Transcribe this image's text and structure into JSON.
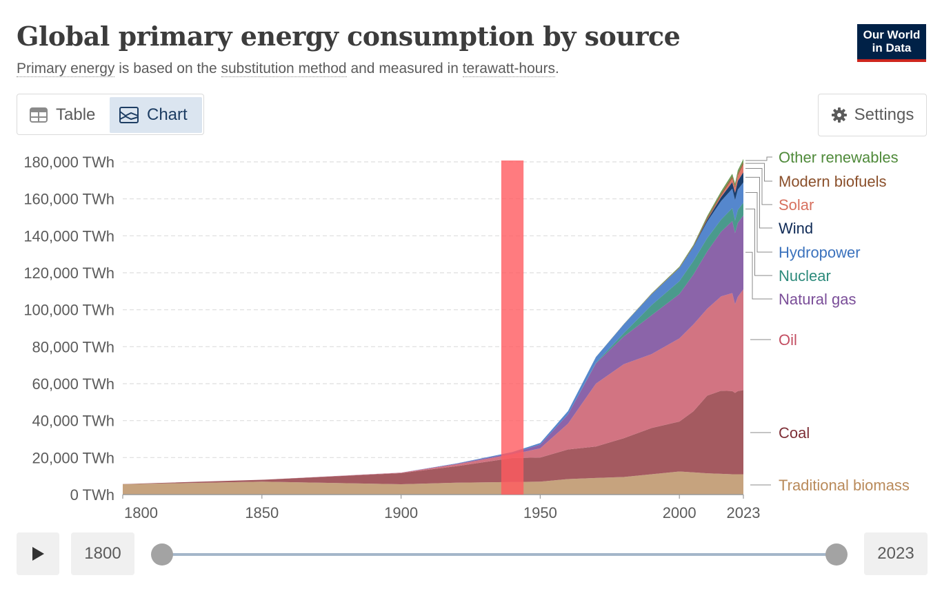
{
  "header": {
    "title": "Global primary energy consumption by source",
    "subtitle_link1": "Primary energy",
    "subtitle_text1": " is based on the ",
    "subtitle_link2": "substitution method",
    "subtitle_text2": " and measured in ",
    "subtitle_link3": "terawatt-hours",
    "subtitle_text3": ".",
    "logo_line1": "Our World",
    "logo_line2": "in Data"
  },
  "tabs": {
    "table": "Table",
    "chart": "Chart",
    "settings": "Settings"
  },
  "timeline": {
    "start_year": "1800",
    "end_year": "2023"
  },
  "colors": {
    "traditional_biomass": "#c6a37e",
    "coal": "#a45a60",
    "oil": "#d27482",
    "natural_gas": "#8b64a9",
    "nuclear": "#4a9a8c",
    "hydropower": "#5587cd",
    "wind": "#1b3f6e",
    "solar": "#e0766a",
    "modern_biofuels": "#a0633e",
    "other_renewables": "#6a9a55",
    "highlight": "#ff5a5f"
  },
  "chart_data": {
    "type": "area",
    "stacked": true,
    "title": "Global primary energy consumption by source",
    "ylabel": "",
    "xlim": [
      1800,
      2023
    ],
    "ylim": [
      0,
      180000
    ],
    "yticks": [
      0,
      20000,
      40000,
      60000,
      80000,
      100000,
      120000,
      140000,
      160000,
      180000
    ],
    "ytick_labels": [
      "0 TWh",
      "20,000 TWh",
      "40,000 TWh",
      "60,000 TWh",
      "80,000 TWh",
      "100,000 TWh",
      "120,000 TWh",
      "140,000 TWh",
      "160,000 TWh",
      "180,000 TWh"
    ],
    "xticks": [
      1800,
      1850,
      1900,
      1950,
      2000,
      2023
    ],
    "xtick_labels": [
      "1800",
      "1850",
      "1900",
      "1950",
      "2000",
      "2023"
    ],
    "grid": "horizontal dashed",
    "legend": "right, end-labels",
    "x": [
      1800,
      1850,
      1900,
      1920,
      1940,
      1950,
      1960,
      1970,
      1980,
      1990,
      2000,
      2005,
      2010,
      2015,
      2019,
      2020,
      2021,
      2023
    ],
    "series": [
      {
        "name": "Traditional biomass",
        "color_key": "traditional_biomass",
        "values": [
          5600,
          7000,
          5600,
          6400,
          6800,
          7000,
          8400,
          9000,
          9500,
          11000,
          12500,
          12000,
          11500,
          11200,
          11000,
          11000,
          11000,
          11000
        ]
      },
      {
        "name": "Coal",
        "color_key": "coal",
        "values": [
          100,
          1000,
          6000,
          9000,
          13000,
          13000,
          16000,
          17000,
          21000,
          25000,
          27000,
          33000,
          42000,
          45000,
          45000,
          44000,
          45000,
          45500
        ]
      },
      {
        "name": "Oil",
        "color_key": "oil",
        "values": [
          0,
          0,
          200,
          1000,
          2000,
          5000,
          14000,
          34000,
          40000,
          40000,
          45000,
          47000,
          47000,
          51000,
          53000,
          48000,
          51000,
          54500
        ]
      },
      {
        "name": "Natural gas",
        "color_key": "natural_gas",
        "values": [
          0,
          0,
          100,
          300,
          700,
          2000,
          5000,
          11000,
          15000,
          21000,
          24000,
          27000,
          31000,
          35000,
          39000,
          38500,
          40000,
          40100
        ]
      },
      {
        "name": "Nuclear",
        "color_key": "nuclear",
        "values": [
          0,
          0,
          0,
          0,
          0,
          0,
          10,
          200,
          1800,
          5500,
          7000,
          7300,
          7200,
          6600,
          7000,
          6800,
          7000,
          6800
        ]
      },
      {
        "name": "Hydropower",
        "color_key": "hydropower",
        "values": [
          0,
          0,
          0,
          200,
          500,
          900,
          1800,
          3200,
          4800,
          5800,
          7000,
          7500,
          9000,
          10000,
          10500,
          11000,
          11000,
          11000
        ]
      },
      {
        "name": "Wind",
        "color_key": "wind",
        "values": [
          0,
          0,
          0,
          0,
          0,
          0,
          0,
          0,
          0,
          10,
          80,
          300,
          900,
          2200,
          3500,
          4000,
          4700,
          5500
        ]
      },
      {
        "name": "Solar",
        "color_key": "solar",
        "values": [
          0,
          0,
          0,
          0,
          0,
          0,
          0,
          0,
          0,
          0,
          5,
          10,
          100,
          700,
          1900,
          2300,
          2800,
          4100
        ]
      },
      {
        "name": "Modern biofuels",
        "color_key": "modern_biofuels",
        "values": [
          0,
          0,
          0,
          0,
          0,
          0,
          0,
          0,
          50,
          200,
          250,
          350,
          1100,
          1200,
          1300,
          1200,
          1300,
          1400
        ]
      },
      {
        "name": "Other renewables",
        "color_key": "other_renewables",
        "values": [
          0,
          0,
          0,
          0,
          0,
          0,
          0,
          10,
          100,
          300,
          500,
          600,
          900,
          1200,
          1400,
          1500,
          1600,
          1700
        ]
      }
    ],
    "highlight_band": {
      "x_start": 1936,
      "x_end": 1944
    }
  }
}
